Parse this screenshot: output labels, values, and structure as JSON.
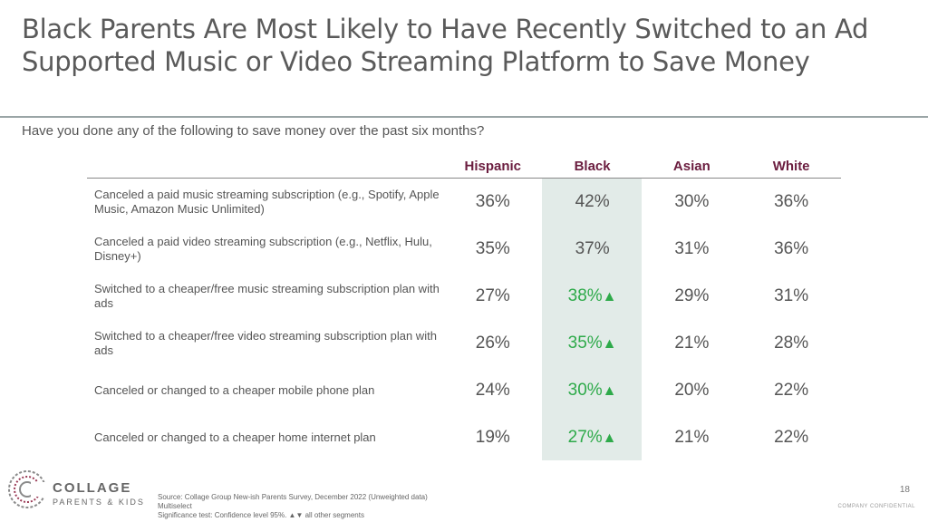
{
  "title": "Black Parents Are Most Likely to Have Recently Switched to an Ad Supported Music or Video Streaming Platform to Save Money",
  "question": "Have you done any of the following to save money over the past six months?",
  "colors": {
    "header": "#6b1d3f",
    "significant": "#2eaa4a",
    "highlight": "#e2ebe8"
  },
  "chart_data": {
    "type": "table",
    "title": "Black Parents Are Most Likely to Have Recently Switched to an Ad Supported Music or Video Streaming Platform to Save Money",
    "columns": [
      "Hispanic",
      "Black",
      "Asian",
      "White"
    ],
    "highlight_column": "Black",
    "rows": [
      {
        "label": "Canceled a paid music streaming subscription (e.g., Spotify, Apple Music, Amazon Music Unlimited)",
        "values": [
          "36%",
          "42%",
          "30%",
          "36%"
        ],
        "significant": [
          false,
          false,
          false,
          false
        ]
      },
      {
        "label": "Canceled a paid video streaming subscription (e.g., Netflix, Hulu, Disney+)",
        "values": [
          "35%",
          "37%",
          "31%",
          "36%"
        ],
        "significant": [
          false,
          false,
          false,
          false
        ]
      },
      {
        "label": "Switched to a cheaper/free music streaming subscription plan with ads",
        "values": [
          "27%",
          "38%",
          "29%",
          "31%"
        ],
        "significant": [
          false,
          true,
          false,
          false
        ]
      },
      {
        "label": "Switched to a cheaper/free video streaming subscription plan with ads",
        "values": [
          "26%",
          "35%",
          "21%",
          "28%"
        ],
        "significant": [
          false,
          true,
          false,
          false
        ]
      },
      {
        "label": "Canceled or changed to a cheaper mobile phone plan",
        "values": [
          "24%",
          "30%",
          "20%",
          "22%"
        ],
        "significant": [
          false,
          true,
          false,
          false
        ]
      },
      {
        "label": "Canceled or changed to a cheaper home internet plan",
        "values": [
          "19%",
          "27%",
          "21%",
          "22%"
        ],
        "significant": [
          false,
          true,
          false,
          false
        ]
      }
    ],
    "significance_marker": "▲"
  },
  "footer": {
    "logo_line1": "COLLAGE",
    "logo_line2": "PARENTS & KIDS",
    "source_line1": "Source: Collage Group New-ish Parents Survey, December 2022 (Unweighted data)",
    "source_line2": "Multiselect",
    "source_line3": "Significance test: Confidence level 95%.  ▲▼ all other segments",
    "page_number": "18",
    "confidential": "COMPANY CONFIDENTIAL"
  }
}
